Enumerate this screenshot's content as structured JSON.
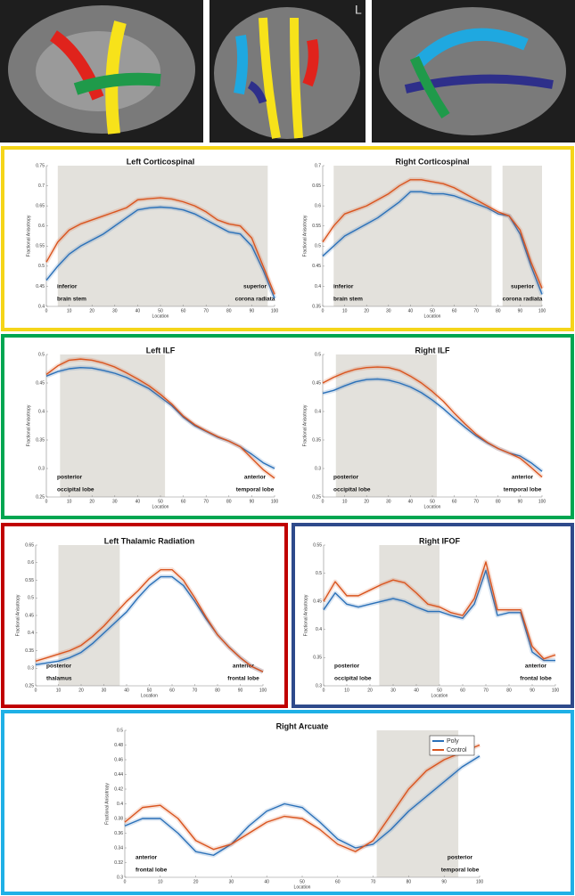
{
  "images": {
    "label": "L"
  },
  "chart_data": [
    {
      "type": "line",
      "title": "Left Corticospinal",
      "x_label": "Location",
      "y_label": "Fractional Anisotropy",
      "frame_color": "#f5d519",
      "x": [
        0,
        5,
        10,
        15,
        20,
        25,
        30,
        35,
        40,
        45,
        50,
        55,
        60,
        65,
        70,
        75,
        80,
        85,
        90,
        95,
        100
      ],
      "xlim": [
        0,
        100
      ],
      "xticks": [
        0,
        10,
        20,
        30,
        40,
        50,
        60,
        70,
        80,
        90,
        100
      ],
      "ylim": [
        0.4,
        0.75
      ],
      "yticks": [
        0.4,
        0.45,
        0.5,
        0.55,
        0.6,
        0.65,
        0.7,
        0.75
      ],
      "shaded": [
        [
          5,
          97
        ]
      ],
      "annotations": {
        "left": [
          "inferior",
          "brain stem"
        ],
        "right": [
          "superior",
          "corona radiata"
        ]
      },
      "series": [
        {
          "color": "#2a70b8",
          "values": [
            0.465,
            0.5,
            0.53,
            0.55,
            0.565,
            0.58,
            0.6,
            0.62,
            0.64,
            0.645,
            0.647,
            0.645,
            0.64,
            0.63,
            0.615,
            0.6,
            0.585,
            0.58,
            0.55,
            0.49,
            0.42
          ]
        },
        {
          "color": "#d9541e",
          "values": [
            0.51,
            0.56,
            0.59,
            0.605,
            0.615,
            0.625,
            0.635,
            0.645,
            0.665,
            0.668,
            0.67,
            0.667,
            0.66,
            0.65,
            0.635,
            0.615,
            0.605,
            0.6,
            0.57,
            0.5,
            0.43
          ]
        }
      ]
    },
    {
      "type": "line",
      "title": "Right Corticospinal",
      "x_label": "Location",
      "y_label": "Fractional Anisotropy",
      "frame_color": "#f5d519",
      "x": [
        0,
        5,
        10,
        15,
        20,
        25,
        30,
        35,
        40,
        45,
        50,
        55,
        60,
        65,
        70,
        75,
        80,
        85,
        90,
        95,
        100
      ],
      "xlim": [
        0,
        100
      ],
      "xticks": [
        0,
        10,
        20,
        30,
        40,
        50,
        60,
        70,
        80,
        90,
        100
      ],
      "ylim": [
        0.35,
        0.7
      ],
      "yticks": [
        0.35,
        0.4,
        0.45,
        0.5,
        0.55,
        0.6,
        0.65,
        0.7
      ],
      "shaded": [
        [
          5,
          77
        ],
        [
          82,
          100
        ]
      ],
      "annotations": {
        "left": [
          "inferior",
          "brain stem"
        ],
        "right": [
          "superior",
          "corona radiata"
        ]
      },
      "series": [
        {
          "color": "#2a70b8",
          "values": [
            0.475,
            0.5,
            0.525,
            0.54,
            0.555,
            0.57,
            0.59,
            0.61,
            0.635,
            0.635,
            0.63,
            0.63,
            0.625,
            0.615,
            0.605,
            0.595,
            0.58,
            0.575,
            0.53,
            0.45,
            0.38
          ]
        },
        {
          "color": "#d9541e",
          "values": [
            0.51,
            0.55,
            0.58,
            0.59,
            0.6,
            0.615,
            0.63,
            0.65,
            0.665,
            0.665,
            0.66,
            0.655,
            0.645,
            0.63,
            0.615,
            0.6,
            0.585,
            0.575,
            0.54,
            0.46,
            0.395
          ]
        }
      ]
    },
    {
      "type": "line",
      "title": "Left ILF",
      "x_label": "Location",
      "y_label": "Fractional Anisotropy",
      "frame_color": "#00a651",
      "x": [
        0,
        5,
        10,
        15,
        20,
        25,
        30,
        35,
        40,
        45,
        50,
        55,
        60,
        65,
        70,
        75,
        80,
        85,
        90,
        95,
        100
      ],
      "xlim": [
        0,
        100
      ],
      "xticks": [
        0,
        10,
        20,
        30,
        40,
        50,
        60,
        70,
        80,
        90,
        100
      ],
      "ylim": [
        0.25,
        0.5
      ],
      "yticks": [
        0.25,
        0.3,
        0.35,
        0.4,
        0.45,
        0.5
      ],
      "shaded": [
        [
          6,
          52
        ]
      ],
      "annotations": {
        "left": [
          "posterior",
          "occipital lobe"
        ],
        "right": [
          "anterior",
          "temporal lobe"
        ]
      },
      "series": [
        {
          "color": "#2a70b8",
          "values": [
            0.462,
            0.47,
            0.475,
            0.477,
            0.476,
            0.472,
            0.467,
            0.46,
            0.45,
            0.44,
            0.425,
            0.41,
            0.39,
            0.375,
            0.365,
            0.355,
            0.348,
            0.338,
            0.325,
            0.31,
            0.3
          ]
        },
        {
          "color": "#d9541e",
          "values": [
            0.465,
            0.48,
            0.49,
            0.492,
            0.49,
            0.485,
            0.478,
            0.468,
            0.457,
            0.445,
            0.43,
            0.413,
            0.392,
            0.377,
            0.366,
            0.356,
            0.348,
            0.338,
            0.318,
            0.298,
            0.283
          ]
        }
      ]
    },
    {
      "type": "line",
      "title": "Right ILF",
      "x_label": "Location",
      "y_label": "Fractional Anisotropy",
      "frame_color": "#00a651",
      "x": [
        0,
        5,
        10,
        15,
        20,
        25,
        30,
        35,
        40,
        45,
        50,
        55,
        60,
        65,
        70,
        75,
        80,
        85,
        90,
        95,
        100
      ],
      "xlim": [
        0,
        100
      ],
      "xticks": [
        0,
        10,
        20,
        30,
        40,
        50,
        60,
        70,
        80,
        90,
        100
      ],
      "ylim": [
        0.25,
        0.5
      ],
      "yticks": [
        0.25,
        0.3,
        0.35,
        0.4,
        0.45,
        0.5
      ],
      "shaded": [
        [
          6,
          52
        ]
      ],
      "annotations": {
        "left": [
          "posterior",
          "occipital lobe"
        ],
        "right": [
          "anterior",
          "temporal lobe"
        ]
      },
      "series": [
        {
          "color": "#2a70b8",
          "values": [
            0.432,
            0.437,
            0.445,
            0.452,
            0.456,
            0.457,
            0.455,
            0.45,
            0.443,
            0.433,
            0.42,
            0.405,
            0.388,
            0.372,
            0.357,
            0.345,
            0.335,
            0.327,
            0.322,
            0.31,
            0.295
          ]
        },
        {
          "color": "#d9541e",
          "values": [
            0.45,
            0.46,
            0.468,
            0.474,
            0.477,
            0.478,
            0.477,
            0.472,
            0.462,
            0.45,
            0.435,
            0.418,
            0.397,
            0.378,
            0.36,
            0.346,
            0.335,
            0.327,
            0.318,
            0.302,
            0.285
          ]
        }
      ]
    },
    {
      "type": "line",
      "title": "Left Thalamic Radiation",
      "x_label": "Location",
      "y_label": "Fractional Anisotropy",
      "frame_color": "#c00000",
      "x": [
        0,
        5,
        10,
        15,
        20,
        25,
        30,
        35,
        40,
        45,
        50,
        55,
        60,
        65,
        70,
        75,
        80,
        85,
        90,
        95,
        100
      ],
      "xlim": [
        0,
        100
      ],
      "xticks": [
        0,
        10,
        20,
        30,
        40,
        50,
        60,
        70,
        80,
        90,
        100
      ],
      "ylim": [
        0.25,
        0.65
      ],
      "yticks": [
        0.25,
        0.3,
        0.35,
        0.4,
        0.45,
        0.5,
        0.55,
        0.6,
        0.65
      ],
      "shaded": [
        [
          10,
          37
        ]
      ],
      "annotations": {
        "left": [
          "posterior",
          "thalamus"
        ],
        "right": [
          "anterior",
          "frontal lobe"
        ]
      },
      "series": [
        {
          "color": "#2a70b8",
          "values": [
            0.31,
            0.315,
            0.32,
            0.33,
            0.345,
            0.37,
            0.4,
            0.43,
            0.46,
            0.5,
            0.535,
            0.56,
            0.56,
            0.535,
            0.49,
            0.44,
            0.395,
            0.36,
            0.33,
            0.305,
            0.29
          ]
        },
        {
          "color": "#d9541e",
          "values": [
            0.32,
            0.33,
            0.34,
            0.35,
            0.365,
            0.39,
            0.42,
            0.455,
            0.49,
            0.52,
            0.555,
            0.58,
            0.58,
            0.55,
            0.5,
            0.445,
            0.395,
            0.36,
            0.33,
            0.305,
            0.29
          ]
        }
      ]
    },
    {
      "type": "line",
      "title": "Right IFOF",
      "x_label": "Location",
      "y_label": "Fractional Anisotropy",
      "frame_color": "#2e4a8b",
      "x": [
        0,
        5,
        10,
        15,
        20,
        25,
        30,
        35,
        40,
        45,
        50,
        55,
        60,
        65,
        70,
        75,
        80,
        85,
        90,
        95,
        100
      ],
      "xlim": [
        0,
        100
      ],
      "xticks": [
        0,
        10,
        20,
        30,
        40,
        50,
        60,
        70,
        80,
        90,
        100
      ],
      "ylim": [
        0.3,
        0.55
      ],
      "yticks": [
        0.3,
        0.35,
        0.4,
        0.45,
        0.5,
        0.55
      ],
      "shaded": [
        [
          24,
          50
        ]
      ],
      "annotations": {
        "left": [
          "posterior",
          "occipital lobe"
        ],
        "right": [
          "anterior",
          "frontal lobe"
        ]
      },
      "series": [
        {
          "color": "#2a70b8",
          "values": [
            0.435,
            0.465,
            0.445,
            0.44,
            0.445,
            0.45,
            0.455,
            0.45,
            0.44,
            0.432,
            0.432,
            0.425,
            0.42,
            0.445,
            0.505,
            0.425,
            0.43,
            0.43,
            0.36,
            0.345,
            0.345
          ]
        },
        {
          "color": "#d9541e",
          "values": [
            0.45,
            0.485,
            0.46,
            0.46,
            0.47,
            0.48,
            0.488,
            0.483,
            0.465,
            0.445,
            0.44,
            0.43,
            0.425,
            0.455,
            0.52,
            0.435,
            0.435,
            0.435,
            0.37,
            0.348,
            0.355
          ]
        }
      ]
    },
    {
      "type": "line",
      "title": "Right Arcuate",
      "x_label": "Location",
      "y_label": "Fractional Anisotropy",
      "frame_color": "#1fb0e6",
      "x": [
        0,
        5,
        10,
        15,
        20,
        25,
        30,
        35,
        40,
        45,
        50,
        55,
        60,
        65,
        70,
        75,
        80,
        85,
        90,
        95,
        100
      ],
      "xlim": [
        0,
        100
      ],
      "xticks": [
        0,
        10,
        20,
        30,
        40,
        50,
        60,
        70,
        80,
        90,
        100
      ],
      "ylim": [
        0.3,
        0.5
      ],
      "yticks": [
        0.3,
        0.32,
        0.34,
        0.36,
        0.38,
        0.4,
        0.42,
        0.44,
        0.46,
        0.48,
        0.5
      ],
      "shaded": [
        [
          71,
          94
        ]
      ],
      "legend": "upper right",
      "annotations": {
        "left": [
          "anterior",
          "frontal lobe"
        ],
        "right": [
          "posterior",
          "temporal lobe"
        ]
      },
      "series": [
        {
          "name": "Poly",
          "color": "#2a70b8",
          "values": [
            0.37,
            0.38,
            0.38,
            0.36,
            0.335,
            0.33,
            0.345,
            0.37,
            0.39,
            0.4,
            0.395,
            0.375,
            0.352,
            0.34,
            0.345,
            0.365,
            0.39,
            0.41,
            0.43,
            0.45,
            0.465
          ]
        },
        {
          "name": "Control",
          "color": "#d9541e",
          "values": [
            0.375,
            0.395,
            0.398,
            0.38,
            0.35,
            0.338,
            0.345,
            0.36,
            0.375,
            0.383,
            0.38,
            0.365,
            0.345,
            0.335,
            0.35,
            0.385,
            0.42,
            0.445,
            0.46,
            0.47,
            0.48
          ]
        }
      ]
    }
  ]
}
